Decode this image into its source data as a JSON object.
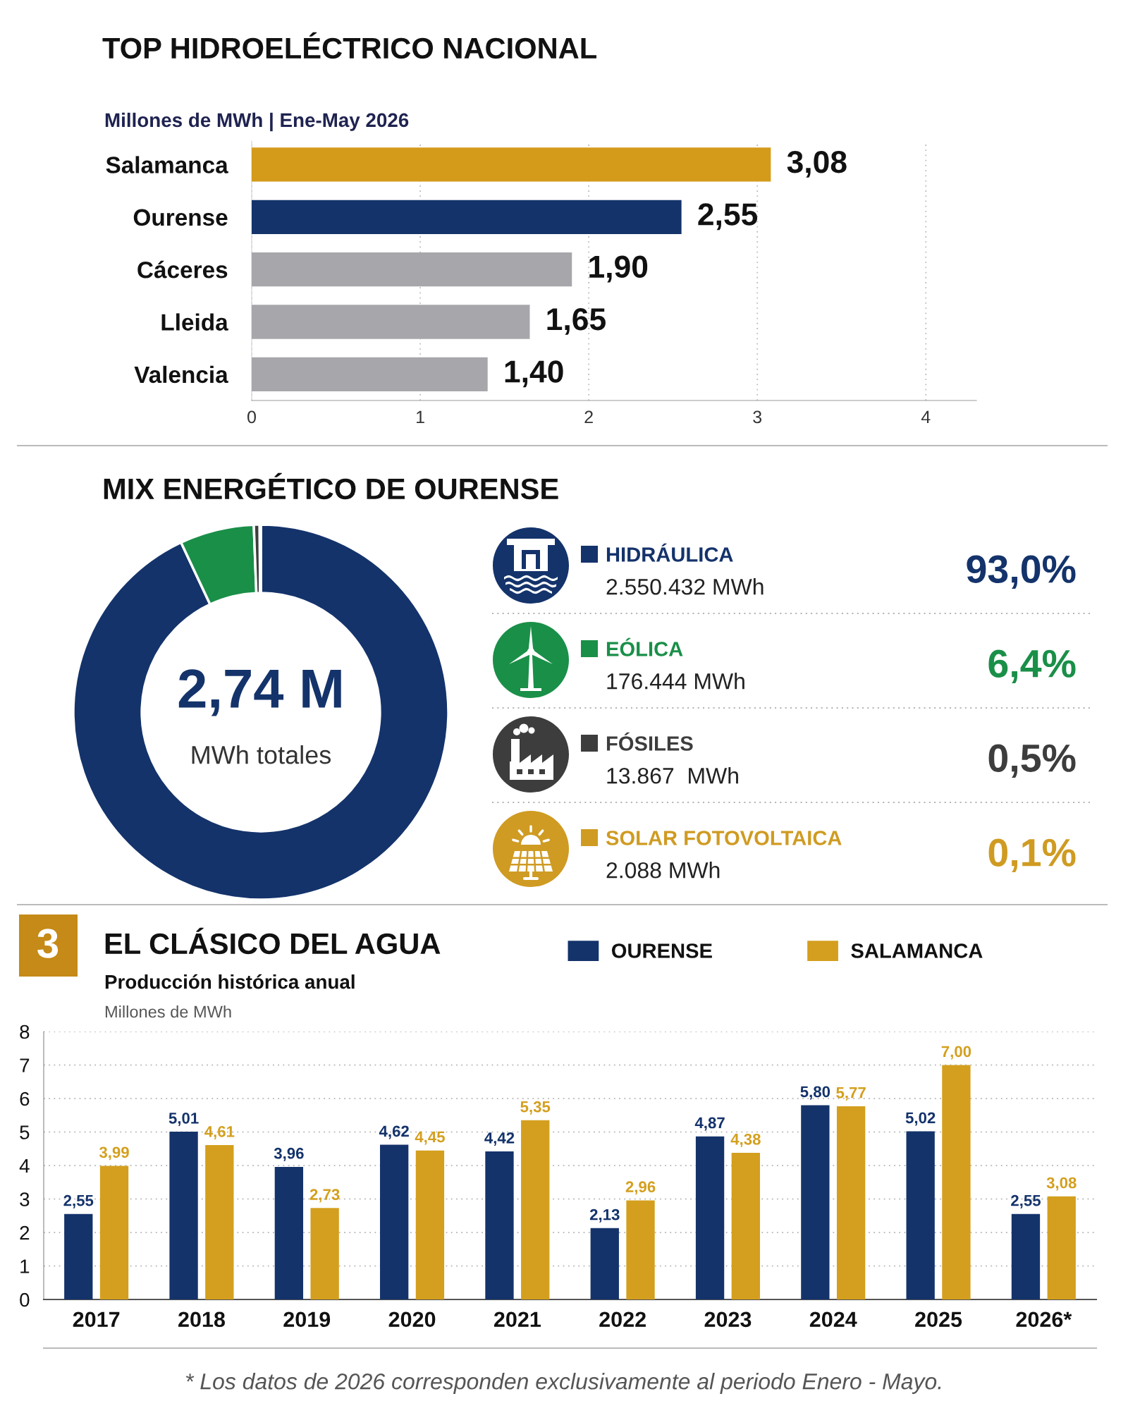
{
  "chart_data": [
    {
      "type": "bar",
      "orientation": "horizontal",
      "title": "TOP HIDROELÉCTRICO NACIONAL",
      "subtitle": "Millones de MWh | Ene-May 2026",
      "categories": [
        "Salamanca",
        "Ourense",
        "Cáceres",
        "Lleida",
        "Valencia"
      ],
      "values": [
        3.08,
        2.55,
        1.9,
        1.65,
        1.4
      ],
      "colors": [
        "#d49a1a",
        "#14336b",
        "#a7a7ab",
        "#a7a7ab",
        "#a7a7ab"
      ],
      "value_labels": [
        "3,08",
        "2,55",
        "1,90",
        "1,65",
        "1,40"
      ],
      "xlim": [
        0,
        4.3
      ],
      "xticks": [
        0,
        1,
        2,
        3,
        4
      ],
      "grid": "x"
    },
    {
      "type": "donut",
      "title": "MIX ENERGÉTICO DE OURENSE",
      "categories": [
        "HIDRÁULICA",
        "EÓLICA",
        "FÓSILES",
        "SOLAR FOTOVOLTAICA"
      ],
      "values": [
        93.0,
        6.4,
        0.5,
        0.1
      ],
      "colors": [
        "#14336b",
        "#1a8f48",
        "#3d3d3d",
        "#cf9b22"
      ],
      "annotations": [
        "2,74 M",
        "MWh totales",
        "2.550.432 MWh",
        "176.444 MWh",
        "13.867  MWh",
        "2.088 MWh",
        "93,0%",
        "6,4%",
        "0,5%",
        "0,1%"
      ],
      "legend": "right"
    },
    {
      "type": "bar",
      "title": "EL CLÁSICO DEL AGUA",
      "subtitle": "Producción histórica anual",
      "ylabel": "Millones de MWh",
      "categories": [
        "2017",
        "2018",
        "2019",
        "2020",
        "2021",
        "2022",
        "2023",
        "2024",
        "2025",
        "2026*"
      ],
      "series": [
        {
          "name": "OURENSE",
          "color": "#14336b",
          "values": [
            2.55,
            5.01,
            3.96,
            4.62,
            4.42,
            2.13,
            4.87,
            5.8,
            5.02,
            2.55
          ],
          "value_labels": [
            "2,55",
            "5,01",
            "3,96",
            "4,62",
            "4,42",
            "2,13",
            "4,87",
            "5,80",
            "5,02",
            "2,55"
          ]
        },
        {
          "name": "SALAMANCA",
          "color": "#d49f1e",
          "values": [
            3.99,
            4.61,
            2.73,
            4.45,
            5.35,
            2.96,
            4.38,
            5.77,
            7.0,
            3.08
          ],
          "value_labels": [
            "3,99",
            "4,61",
            "2,73",
            "4,45",
            "5,35",
            "2,96",
            "4,38",
            "5,77",
            "7,00",
            "3,08"
          ]
        }
      ],
      "ylim": [
        0,
        8
      ],
      "yticks": [
        0,
        1,
        2,
        3,
        4,
        5,
        6,
        7,
        8
      ],
      "grid": "y",
      "legend": "top right",
      "annotations": [
        "3",
        "* Los datos de 2026 corresponden exclusivamente al periodo Enero - Mayo."
      ]
    }
  ]
}
